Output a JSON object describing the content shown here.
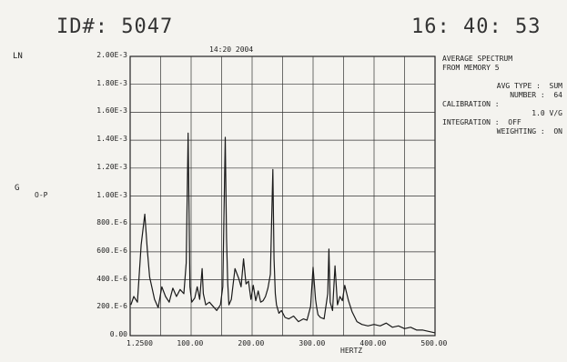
{
  "header": {
    "id_text": "ID#: 5047",
    "clock": "16: 40: 53"
  },
  "scale_tag": "LN",
  "unit_main": "G",
  "unit_sub": "O-P",
  "timestamp": "14:20  2004",
  "info": {
    "line1": "AVERAGE SPECTRUM",
    "line2": "FROM MEMORY 5",
    "avg_type": "AVG TYPE :  SUM",
    "number": "NUMBER :  64",
    "calibration": "CALIBRATION :",
    "calibration_value": "1.0 V/G",
    "integration": "INTEGRATION :  OFF",
    "weighting": "WEIGHTING :  ON"
  },
  "chart_data": {
    "type": "line",
    "title": "",
    "xlabel": "HERTZ",
    "ylabel": "",
    "xlim": [
      0,
      500
    ],
    "ylim": [
      0,
      0.002
    ],
    "grid": true,
    "y_ticks": [
      "2.00E-3",
      "1.80E-3",
      "1.60E-3",
      "1.40E-3",
      "1.20E-3",
      "1.00E-3",
      "800.E-6",
      "600.E-6",
      "400.E-6",
      "200.E-6",
      "0.00"
    ],
    "x_ticks": [
      "1.2500",
      "100.00",
      "200.00",
      "300.00",
      "400.00",
      "500.00"
    ],
    "series": [
      {
        "x": [
          1.25,
          6,
          12,
          18,
          24,
          28,
          32,
          36,
          40,
          46,
          52,
          58,
          64,
          70,
          76,
          82,
          88,
          92,
          95,
          98,
          101,
          106,
          110,
          114,
          118,
          120,
          124,
          130,
          136,
          142,
          148,
          152,
          156,
          158,
          160,
          162,
          166,
          172,
          178,
          182,
          186,
          190,
          194,
          198,
          202,
          206,
          210,
          214,
          218,
          222,
          226,
          230,
          234,
          236,
          238,
          240,
          244,
          248,
          254,
          260,
          268,
          276,
          284,
          290,
          296,
          300,
          304,
          306,
          308,
          312,
          318,
          324,
          326,
          328,
          332,
          336,
          340,
          344,
          348,
          352,
          358,
          364,
          372,
          380,
          390,
          400,
          410,
          420,
          430,
          440,
          450,
          460,
          470,
          480,
          490,
          500
        ],
        "y": [
          0.00022,
          0.00028,
          0.00024,
          0.00065,
          0.00087,
          0.00062,
          0.00042,
          0.00034,
          0.00026,
          0.0002,
          0.00035,
          0.00028,
          0.00024,
          0.00034,
          0.00028,
          0.00033,
          0.0003,
          0.00052,
          0.00145,
          0.00035,
          0.00024,
          0.00027,
          0.00035,
          0.00026,
          0.00048,
          0.0003,
          0.00022,
          0.00024,
          0.00021,
          0.00018,
          0.00022,
          0.00035,
          0.00142,
          0.0007,
          0.00038,
          0.00022,
          0.00026,
          0.00048,
          0.00041,
          0.00035,
          0.00055,
          0.00037,
          0.00039,
          0.00026,
          0.00036,
          0.00025,
          0.00032,
          0.00024,
          0.00025,
          0.00028,
          0.00034,
          0.00044,
          0.00119,
          0.00055,
          0.0003,
          0.00022,
          0.00016,
          0.00018,
          0.00013,
          0.00012,
          0.00014,
          0.0001,
          0.00012,
          0.00011,
          0.00021,
          0.00049,
          0.00026,
          0.0002,
          0.00015,
          0.00013,
          0.00012,
          0.0003,
          0.00062,
          0.00024,
          0.00018,
          0.0005,
          0.00022,
          0.00028,
          0.00025,
          0.00036,
          0.00025,
          0.00017,
          0.0001,
          8e-05,
          7e-05,
          8e-05,
          7e-05,
          9e-05,
          6e-05,
          7e-05,
          5e-05,
          6e-05,
          4e-05,
          4e-05,
          3e-05,
          2e-05
        ]
      }
    ]
  }
}
